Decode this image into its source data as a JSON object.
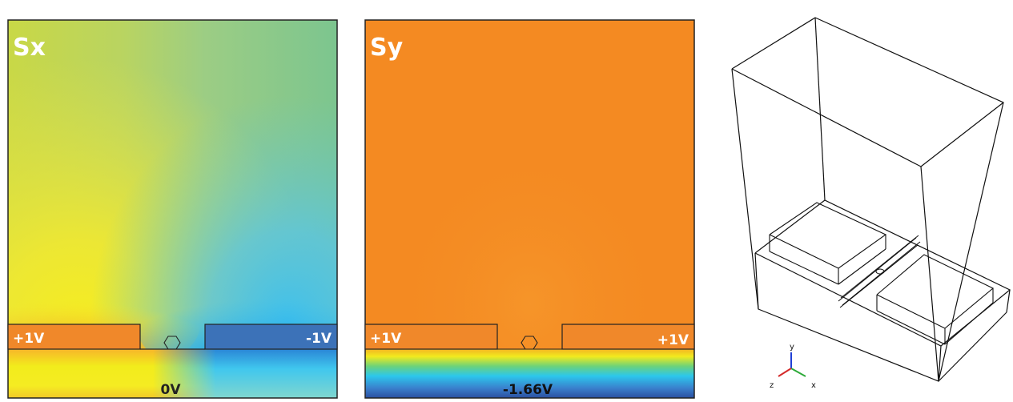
{
  "panels": {
    "sx": {
      "title": "Sx",
      "left_electrode": "+1V",
      "right_electrode": "-1V",
      "bottom_gate": "0V"
    },
    "sy": {
      "title": "Sy",
      "left_electrode": "+1V",
      "right_electrode": "+1V",
      "bottom_gate": "-1.66V"
    },
    "geometry": {
      "axis_y": "y",
      "axis_z": "z",
      "axis_x": "x"
    }
  },
  "colors": {
    "electrode_orange": "#F0882A",
    "electrode_blue": "#3C72B8",
    "sy_background": "#F48A22",
    "axis_y": "#1f3fd6",
    "axis_z": "#d42a2a",
    "axis_x": "#2eaa3a"
  }
}
